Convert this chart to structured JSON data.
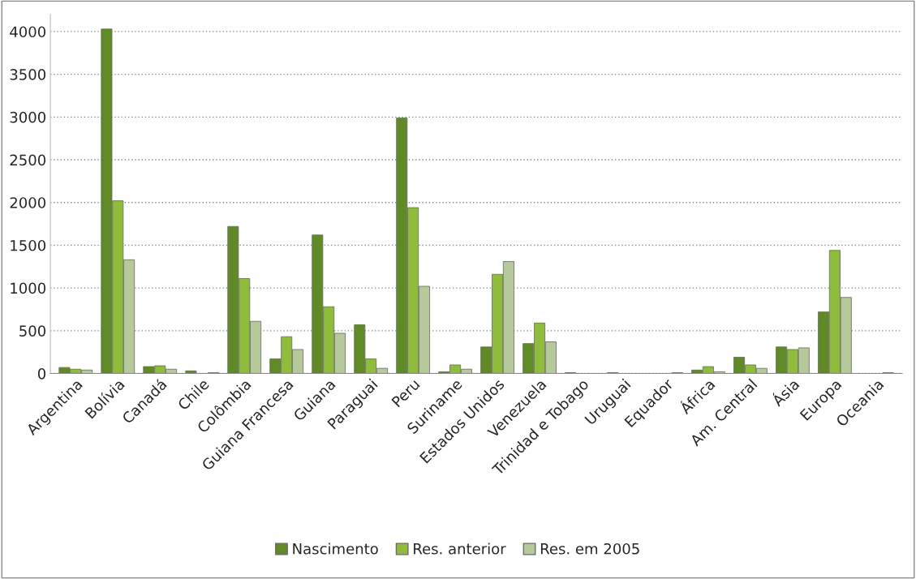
{
  "chart_data": {
    "type": "bar",
    "categories": [
      "Argentina",
      "Bolívia",
      "Canadá",
      "Chile",
      "Colômbia",
      "Guiana Francesa",
      "Guiana",
      "Paraguai",
      "Peru",
      "Suriname",
      "Estados Unidos",
      "Venezuela",
      "Trinidad e Tobago",
      "Uruguai",
      "Equador",
      "África",
      "Am. Central",
      "Ásia",
      "Europa",
      "Oceania"
    ],
    "series": [
      {
        "name": "Nascimento",
        "color": "#5f8a26",
        "values": [
          70,
          4030,
          80,
          30,
          1720,
          170,
          1620,
          570,
          2990,
          20,
          310,
          350,
          10,
          10,
          null,
          40,
          190,
          310,
          720,
          null
        ]
      },
      {
        "name": "Res. anterior",
        "color": "#8fbc3a",
        "values": [
          50,
          2020,
          90,
          null,
          1110,
          430,
          780,
          170,
          1940,
          100,
          1160,
          590,
          null,
          null,
          null,
          80,
          100,
          280,
          1440,
          null
        ]
      },
      {
        "name": "Res. em 2005",
        "color": "#b5c99a",
        "values": [
          40,
          1330,
          50,
          10,
          610,
          280,
          470,
          60,
          1020,
          50,
          1310,
          370,
          null,
          null,
          10,
          20,
          60,
          300,
          890,
          10
        ]
      }
    ],
    "ylim": [
      0,
      4200
    ],
    "yticks": [
      0,
      500,
      1000,
      1500,
      2000,
      2500,
      3000,
      3500,
      4000
    ],
    "grid": "y",
    "legend": "bottom"
  }
}
